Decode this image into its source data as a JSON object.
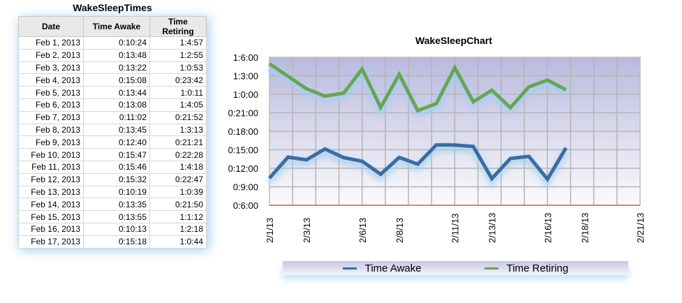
{
  "table": {
    "title": "WakeSleepTimes",
    "columns": [
      "Date",
      "Time Awake",
      "Time Retiring"
    ],
    "rows": [
      [
        "Feb 1, 2013",
        "0:10:24",
        "1:4:57"
      ],
      [
        "Feb 2, 2013",
        "0:13:48",
        "1:2:55"
      ],
      [
        "Feb 3, 2013",
        "0:13:22",
        "1:0:53"
      ],
      [
        "Feb 4, 2013",
        "0:15:08",
        "0:23:42"
      ],
      [
        "Feb 5, 2013",
        "0:13:44",
        "1:0:11"
      ],
      [
        "Feb 6, 2013",
        "0:13:08",
        "1:4:05"
      ],
      [
        "Feb 7, 2013",
        "0:11:02",
        "0:21:52"
      ],
      [
        "Feb 8, 2013",
        "0:13:45",
        "1:3:13"
      ],
      [
        "Feb 9, 2013",
        "0:12:40",
        "0:21:21"
      ],
      [
        "Feb 10, 2013",
        "0:15:47",
        "0:22:28"
      ],
      [
        "Feb 11, 2013",
        "0:15:46",
        "1:4:18"
      ],
      [
        "Feb 12, 2013",
        "0:15:32",
        "0:22:47"
      ],
      [
        "Feb 13, 2013",
        "0:10:19",
        "1:0:39"
      ],
      [
        "Feb 14, 2013",
        "0:13:35",
        "0:21:50"
      ],
      [
        "Feb 15, 2013",
        "0:13:55",
        "1:1:12"
      ],
      [
        "Feb 16, 2013",
        "0:10:13",
        "1:2:18"
      ],
      [
        "Feb 17, 2013",
        "0:15:18",
        "1:0:44"
      ]
    ]
  },
  "chart_data": {
    "type": "line",
    "title": "WakeSleepChart",
    "xlabel": "",
    "ylabel": "",
    "x": [
      "2/1/13",
      "2/2/13",
      "2/3/13",
      "2/4/13",
      "2/5/13",
      "2/6/13",
      "2/7/13",
      "2/8/13",
      "2/9/13",
      "2/10/13",
      "2/11/13",
      "2/12/13",
      "2/13/13",
      "2/14/13",
      "2/15/13",
      "2/16/13",
      "2/17/13"
    ],
    "x_tick_labels": [
      "2/1/13",
      "2/3/13",
      "2/6/13",
      "2/8/13",
      "2/11/13",
      "2/13/13",
      "2/16/13",
      "2/18/13",
      "2/21/13"
    ],
    "x_range_days": [
      1,
      21
    ],
    "y_tick_labels": [
      "0:6:00",
      "0:9:00",
      "0:12:00",
      "0:15:00",
      "0:18:00",
      "0:21:00",
      "1:0:00",
      "1:3:00",
      "1:6:00"
    ],
    "ylim_units": [
      6,
      30
    ],
    "series": [
      {
        "name": "Time Awake",
        "color": "#3d6b9e",
        "values": [
          "0:10:24",
          "0:13:48",
          "0:13:22",
          "0:15:08",
          "0:13:44",
          "0:13:08",
          "0:11:02",
          "0:13:45",
          "0:12:40",
          "0:15:47",
          "0:15:46",
          "0:15:32",
          "0:10:19",
          "0:13:35",
          "0:13:55",
          "0:10:13",
          "0:15:18"
        ],
        "numeric": [
          10.4,
          13.8,
          13.37,
          15.13,
          13.73,
          13.13,
          11.03,
          13.75,
          12.67,
          15.78,
          15.77,
          15.53,
          10.32,
          13.58,
          13.92,
          10.22,
          15.3
        ]
      },
      {
        "name": "Time Retiring",
        "color": "#6ba356",
        "values": [
          "1:4:57",
          "1:2:55",
          "1:0:53",
          "0:23:42",
          "1:0:11",
          "1:4:05",
          "0:21:52",
          "1:3:13",
          "0:21:21",
          "0:22:28",
          "1:4:18",
          "0:22:47",
          "1:0:39",
          "0:21:50",
          "1:1:12",
          "1:2:18",
          "1:0:44"
        ],
        "numeric": [
          28.95,
          26.92,
          24.88,
          23.7,
          24.18,
          28.08,
          21.87,
          27.22,
          21.35,
          22.47,
          28.3,
          22.78,
          24.65,
          21.83,
          25.2,
          26.3,
          24.73
        ]
      }
    ],
    "grid": true,
    "legend_position": "bottom"
  },
  "legend": {
    "items": [
      {
        "label": "Time Awake",
        "color": "#3d6b9e"
      },
      {
        "label": "Time Retiring",
        "color": "#6ba356"
      }
    ]
  }
}
